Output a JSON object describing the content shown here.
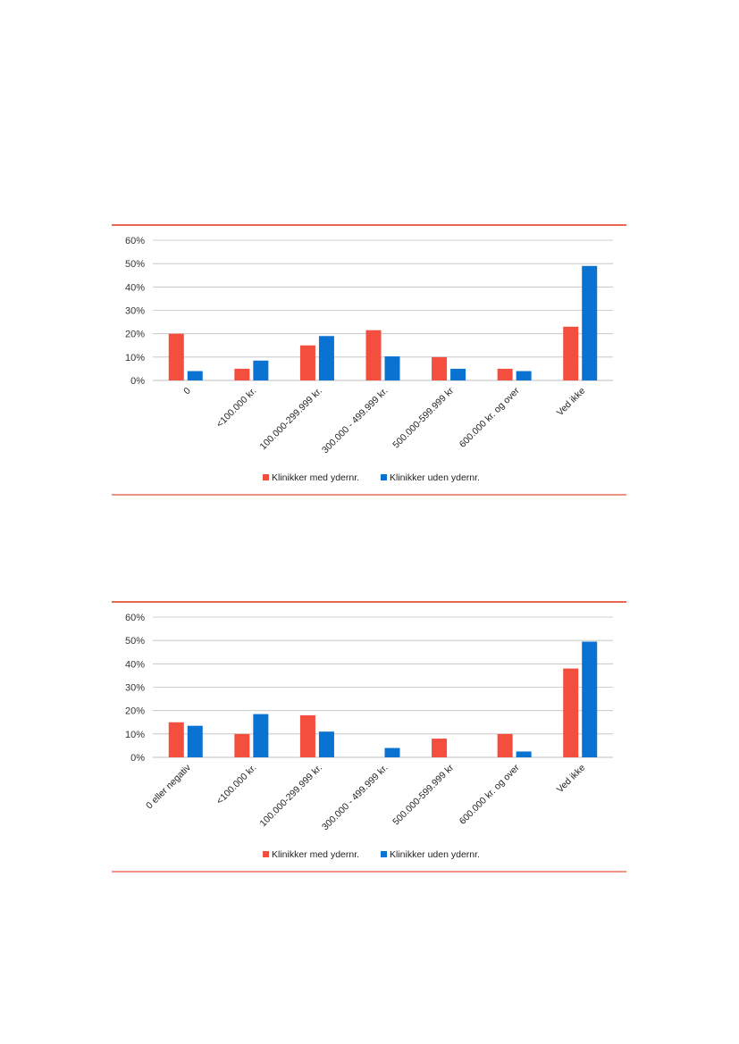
{
  "colors": {
    "frame": "#E8503A",
    "series_med": "#F44E3E",
    "series_uden": "#0A72D1",
    "grid": "#BFBFBF"
  },
  "chart_data": [
    {
      "type": "bar",
      "categories": [
        "0",
        "<100.000 kr.",
        "100.000-299.999 kr.",
        "300.000 - 499.999 kr.",
        "500.000-599.999 kr",
        "600.000 kr. og over",
        "Ved ikke"
      ],
      "series": [
        {
          "name": "Klinikker med ydernr.",
          "values": [
            20,
            5,
            15,
            21.5,
            10,
            5,
            23
          ]
        },
        {
          "name": "Klinikker uden ydernr.",
          "values": [
            4,
            8.5,
            19,
            10.3,
            5,
            4,
            49
          ]
        }
      ],
      "yticks": [
        "0%",
        "10%",
        "20%",
        "30%",
        "40%",
        "50%",
        "60%"
      ],
      "ylim": [
        0,
        60
      ],
      "grid": true,
      "legend": "bottom"
    },
    {
      "type": "bar",
      "categories": [
        "0 eller negativ",
        "<100.000 kr.",
        "100.000-299.999 kr.",
        "300.000 - 499.999 kr.",
        "500.000-599.999 kr",
        "600.000 kr. og over",
        "Ved ikke"
      ],
      "series": [
        {
          "name": "Klinikker med ydernr.",
          "values": [
            15,
            10,
            18,
            0,
            8,
            10,
            38
          ]
        },
        {
          "name": "Klinikker uden ydernr.",
          "values": [
            13.5,
            18.5,
            11,
            4,
            0,
            2.5,
            49.5
          ]
        }
      ],
      "yticks": [
        "0%",
        "10%",
        "20%",
        "30%",
        "40%",
        "50%",
        "60%"
      ],
      "ylim": [
        0,
        60
      ],
      "grid": true,
      "legend": "bottom"
    }
  ]
}
